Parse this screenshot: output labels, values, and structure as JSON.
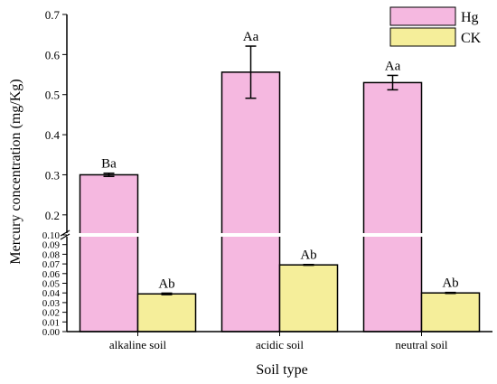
{
  "chart_data": {
    "type": "bar",
    "xlabel": "Soil type",
    "ylabel": "Mercury concentration (mg/Kg)",
    "categories": [
      "alkaline soil",
      "acidic soil",
      "neutral soil"
    ],
    "axis_break": {
      "lower_range": [
        0,
        0.1
      ],
      "upper_range": [
        0.15,
        0.7
      ]
    },
    "lower_ticks": [
      "0.00",
      "0.01",
      "0.02",
      "0.03",
      "0.04",
      "0.05",
      "0.06",
      "0.07",
      "0.08",
      "0.09",
      "0.10"
    ],
    "upper_ticks": [
      "0.2",
      "0.3",
      "0.4",
      "0.5",
      "0.6",
      "0.7"
    ],
    "series": [
      {
        "name": "Hg",
        "color": "#f5b8e0",
        "values": [
          0.3,
          0.556,
          0.53
        ],
        "errors": [
          0.004,
          0.065,
          0.018
        ],
        "labels": [
          "Ba",
          "Aa",
          "Aa"
        ]
      },
      {
        "name": "CK",
        "color": "#f5ee9a",
        "values": [
          0.039,
          0.069,
          0.04
        ],
        "errors": [
          0.0008,
          0.0004,
          0.0005
        ],
        "labels": [
          "Ab",
          "Ab",
          "Ab"
        ]
      }
    ],
    "legend_position": "top-right"
  }
}
